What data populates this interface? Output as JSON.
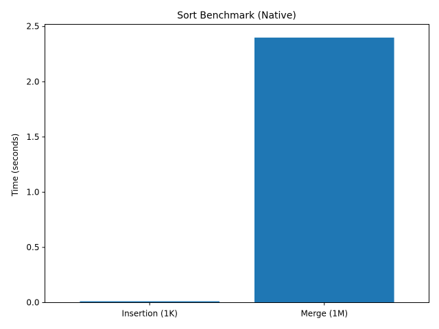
{
  "chart_data": {
    "type": "bar",
    "title": "Sort Benchmark (Native)",
    "xlabel": "",
    "ylabel": "Time (seconds)",
    "categories": [
      "Insertion (1K)",
      "Merge (1M)"
    ],
    "values": [
      0.012,
      2.4
    ],
    "ylim": [
      0,
      2.52
    ],
    "yticks": [
      0.0,
      0.5,
      1.0,
      1.5,
      2.0,
      2.5
    ],
    "ytick_labels": [
      "0.0",
      "0.5",
      "1.0",
      "1.5",
      "2.0",
      "2.5"
    ],
    "grid": false,
    "legend": "none",
    "bar_color": "#1f77b4"
  }
}
